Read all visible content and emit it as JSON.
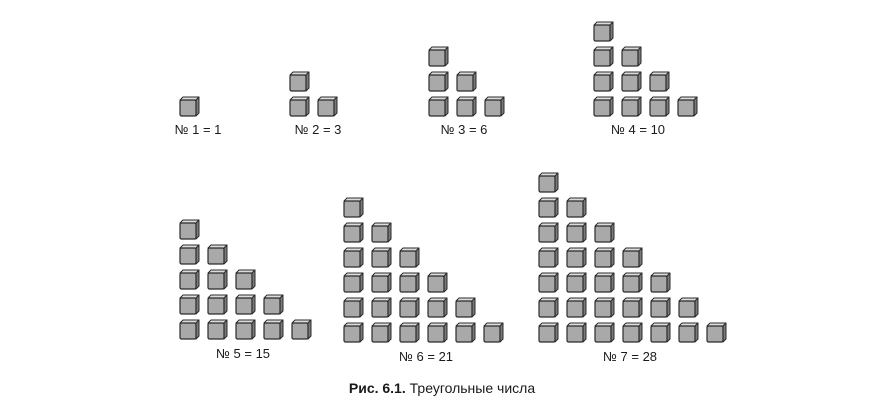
{
  "figures": [
    {
      "n": 1,
      "label": "№ 1 = 1"
    },
    {
      "n": 2,
      "label": "№ 2 = 3"
    },
    {
      "n": 3,
      "label": "№ 3 = 6"
    },
    {
      "n": 4,
      "label": "№ 4 = 10"
    },
    {
      "n": 5,
      "label": "№ 5 = 15"
    },
    {
      "n": 6,
      "label": "№ 6 = 21"
    },
    {
      "n": 7,
      "label": "№ 7 = 28"
    }
  ],
  "caption": {
    "prefix": "Рис. 6.1.",
    "text": "Треугольные числа"
  },
  "colors": {
    "block_face": "#a9a9a9",
    "block_top": "#dcdcdc",
    "block_side": "#7a7a7a",
    "block_edge": "#2b2b2b"
  }
}
